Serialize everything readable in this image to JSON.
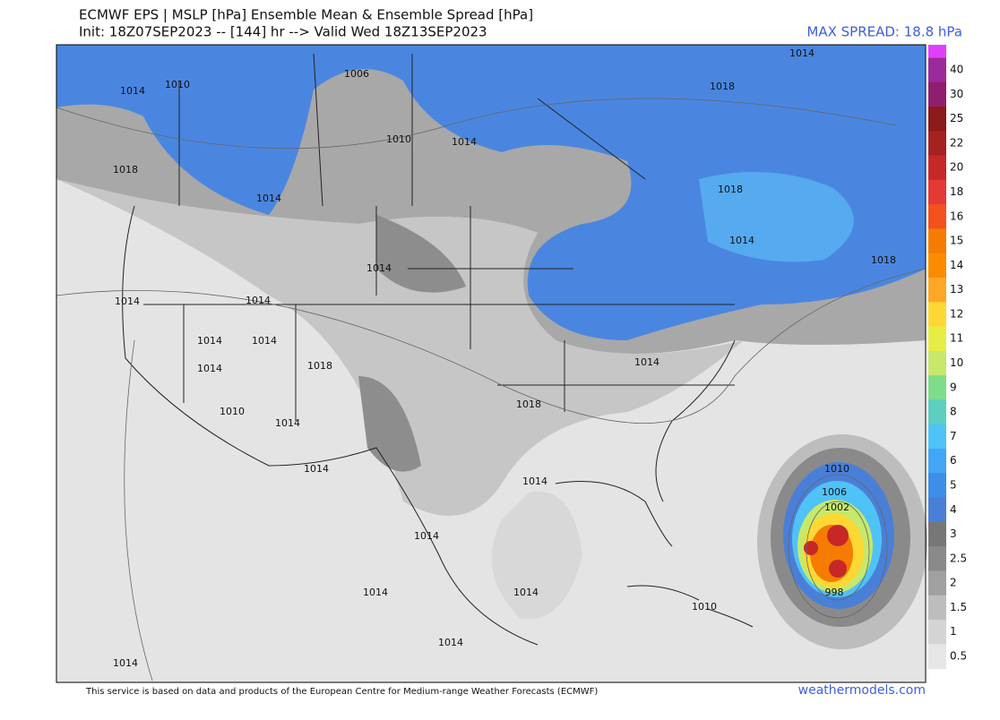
{
  "header": {
    "title_line1": "ECMWF EPS | MSLP [hPa] Ensemble Mean & Ensemble Spread [hPa]",
    "title_line2": "Init: 18Z07SEP2023 -- [144] hr --> Valid Wed 18Z13SEP2023",
    "max_spread": "MAX SPREAD: 18.8 hPa"
  },
  "colorbar": {
    "labels": [
      "40",
      "30",
      "25",
      "22",
      "20",
      "18",
      "16",
      "15",
      "14",
      "13",
      "12",
      "11",
      "10",
      "9",
      "8",
      "7",
      "6",
      "5",
      "4",
      "3",
      "2.5",
      "2",
      "1.5",
      "1",
      "0.5"
    ],
    "colors": [
      "#9b2a9b",
      "#8e1f6e",
      "#8b1a1a",
      "#a52222",
      "#c62828",
      "#e53935",
      "#f4511e",
      "#f57c00",
      "#fb8c00",
      "#ffa726",
      "#fdd835",
      "#e6ee44",
      "#c6e86b",
      "#7fdc8a",
      "#5ccfc0",
      "#4fc3f7",
      "#42a5f5",
      "#3d8ee8",
      "#4a7fd8",
      "#777777",
      "#8a8a8a",
      "#a0a0a0",
      "#bdbdbd",
      "#d4d4d4",
      "#e6e6e6"
    ]
  },
  "contour_labels": [
    "1014",
    "1010",
    "1006",
    "1010",
    "1014",
    "1018",
    "1014",
    "1014",
    "1014",
    "1014",
    "1014",
    "1014",
    "1014",
    "1018",
    "1010",
    "1014",
    "1014",
    "1014",
    "1018",
    "1014",
    "1014",
    "1018",
    "1018",
    "1014",
    "1018",
    "1010",
    "1006",
    "1002",
    "998",
    "1014",
    "1014",
    "1014",
    "1014",
    "1010",
    "1014"
  ],
  "footer": {
    "notice": "This service is based on data and products of the European Centre for Medium-range Weather Forecasts (ECMWF)",
    "site": "weathermodels.com"
  }
}
